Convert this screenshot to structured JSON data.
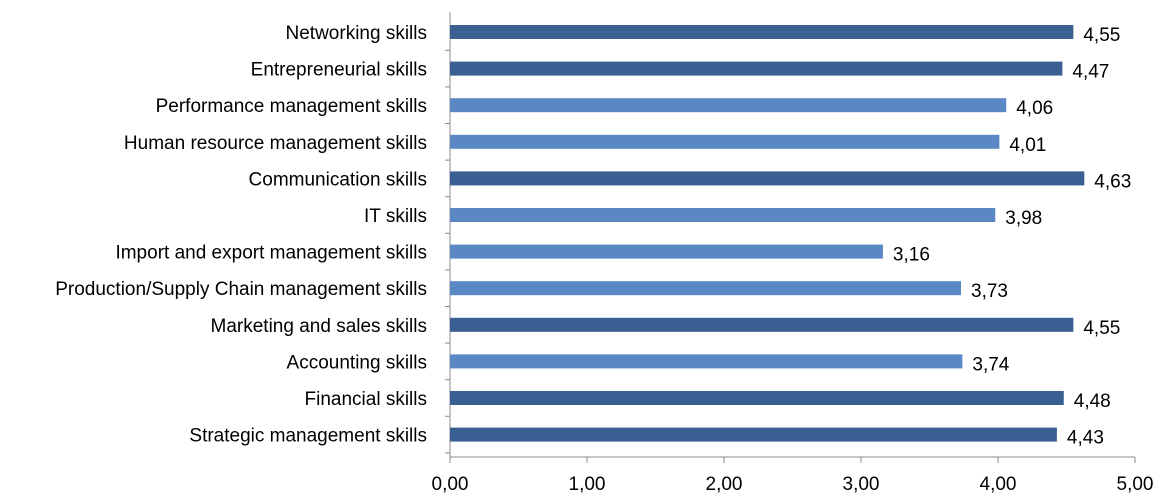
{
  "colors": {
    "dark_bar": "#3a5f92",
    "light_bar": "#5a88c4",
    "axis": "#8c8c8c"
  },
  "chart_data": {
    "type": "bar",
    "orientation": "horizontal",
    "categories": [
      "Networking skills",
      "Entrepreneurial skills",
      "Performance management skills",
      "Human resource management skills",
      "Communication skills",
      "IT skills",
      "Import and export management skills",
      "Production/Supply Chain management skills",
      "Marketing and sales skills",
      "Accounting skills",
      "Financial skills",
      "Strategic management skills"
    ],
    "values": [
      4.55,
      4.47,
      4.06,
      4.01,
      4.63,
      3.98,
      3.16,
      3.73,
      4.55,
      3.74,
      4.48,
      4.43
    ],
    "value_labels": [
      "4,55",
      "4,47",
      "4,06",
      "4,01",
      "4,63",
      "3,98",
      "3,16",
      "3,73",
      "4,55",
      "3,74",
      "4,48",
      "4,43"
    ],
    "bar_tone": [
      "dark",
      "dark",
      "light",
      "light",
      "dark",
      "light",
      "light",
      "light",
      "dark",
      "light",
      "dark",
      "dark"
    ],
    "xlim": [
      0,
      5
    ],
    "x_ticks": [
      0,
      1,
      2,
      3,
      4,
      5
    ],
    "x_tick_labels": [
      "0,00",
      "1,00",
      "2,00",
      "3,00",
      "4,00",
      "5,00"
    ],
    "grid": false,
    "legend": "none",
    "title": "",
    "xlabel": "",
    "ylabel": ""
  }
}
